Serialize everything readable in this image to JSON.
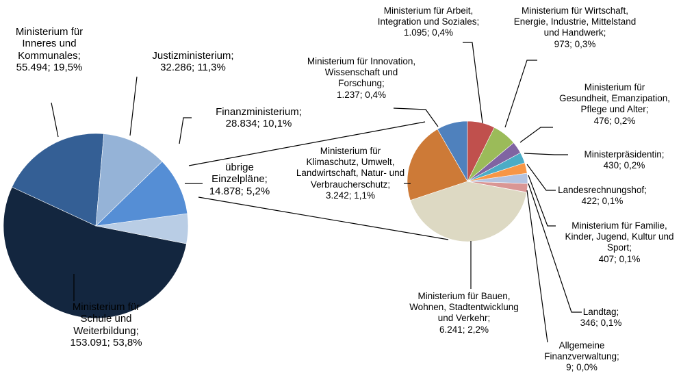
{
  "chart_data": [
    {
      "type": "pie",
      "categories": [
        "Justizministerium;",
        "Finanzministerium;",
        "übrige Einzelpläne;",
        "Ministerium für Schule und Weiterbildung;",
        "Ministerium für Inneres und Kommunales;"
      ],
      "values": [
        32286,
        28834,
        14878,
        153091,
        55494
      ],
      "value_labels": [
        "32.286; 11,3%",
        "28.834; 10,1%",
        "14.878; 5,2%",
        "153.091; 53,8%",
        "55.494; 19,5%"
      ],
      "colors": [
        "#95b3d7",
        "#558ed5",
        "#b9cde5",
        "#13263f",
        "#345f95"
      ]
    },
    {
      "type": "pie",
      "categories": [
        "Ministerium für Arbeit, Integration und Soziales;",
        "Ministerium für Wirtschaft, Energie, Industrie, Mittelstand und Handwerk;",
        "Ministerium für Gesundheit, Emanzipation, Pflege und Alter;",
        "Ministerpräsidentin;",
        "Landesrechnungshof;",
        "Ministerium für Familie, Kinder, Jugend, Kultur und Sport;",
        "Landtag;",
        "Allgemeine Finanzverwaltung;",
        "Ministerium für Bauen, Wohnen, Stadtentwicklung und Verkehr;",
        "Ministerium für Klimaschutz, Umwelt, Landwirtschaft, Natur- und Verbraucherschutz;",
        "Ministerium für Innovation, Wissenschaft und Forschung;"
      ],
      "values": [
        1095,
        973,
        476,
        430,
        422,
        407,
        346,
        9,
        6241,
        3242,
        1237
      ],
      "value_labels": [
        "1.095; 0,4%",
        "973; 0,3%",
        "476; 0,2%",
        "430; 0,2%",
        "422; 0,1%",
        "407; 0,1%",
        "346; 0,1%",
        "9; 0,0%",
        "6.241; 2,2%",
        "3.242; 1,1%",
        "1.237; 0,4%"
      ],
      "colors": [
        "#c0504d",
        "#9bbb59",
        "#8064a2",
        "#4bacc6",
        "#f79646",
        "#b3c3e0",
        "#d99694",
        "#7f7f7f",
        "#ddd9c3",
        "#cd7a37",
        "#4f81bd"
      ]
    }
  ]
}
